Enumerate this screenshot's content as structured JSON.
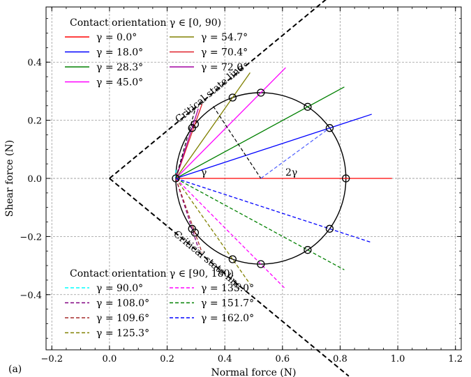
{
  "panel_label": "(a)",
  "chart_data": {
    "type": "line",
    "xlabel": "Normal force (N)",
    "ylabel": "Shear force (N)",
    "xlim": [
      -0.22,
      1.22
    ],
    "ylim": [
      -0.59,
      0.59
    ],
    "xticks": [
      -0.2,
      0.0,
      0.2,
      0.4,
      0.6,
      0.8,
      1.0,
      1.2
    ],
    "yticks": [
      -0.4,
      -0.2,
      0.0,
      0.2,
      0.4
    ],
    "xtick_labels": [
      "−0.2",
      "0.0",
      "0.2",
      "0.4",
      "0.6",
      "0.8",
      "1.0",
      "1.2"
    ],
    "ytick_labels": [
      "−0.4",
      "−0.2",
      "0.0",
      "0.2",
      "0.4"
    ],
    "grid": true,
    "mohr_circle": {
      "center": [
        0.525,
        0.0
      ],
      "radius": 0.295
    },
    "critical_state_line": {
      "slope": 0.82,
      "x_range": [
        0.0,
        0.83
      ],
      "label": "Critical state line"
    },
    "construction": {
      "origin": [
        0.23,
        0.0
      ],
      "angle_label": "γ",
      "double_angle_label": "2γ",
      "tangent_points": [
        [
          0.3,
          0.248
        ],
        [
          0.36,
          0.248
        ]
      ]
    },
    "legend_upper": {
      "title": "Contact orientation γ ∈ [0, 90)",
      "position": "top-left",
      "style": "solid",
      "entries": [
        {
          "label": "γ = 0.0°",
          "angle": 0.0,
          "color": "#ff0000"
        },
        {
          "label": "γ = 18.0°",
          "angle": 18.0,
          "color": "#0000ff"
        },
        {
          "label": "γ = 28.3°",
          "angle": 28.3,
          "color": "#008000"
        },
        {
          "label": "γ = 45.0°",
          "angle": 45.0,
          "color": "#ff00ff"
        },
        {
          "label": "γ = 54.7°",
          "angle": 54.7,
          "color": "#808000"
        },
        {
          "label": "γ = 70.4°",
          "angle": 70.4,
          "color": "#e0202a"
        },
        {
          "label": "γ = 72.0°",
          "angle": 72.0,
          "color": "#a000a0"
        }
      ]
    },
    "legend_lower": {
      "title": "Contact orientation γ ∈ [90, 180)",
      "position": "bottom-left",
      "style": "dashed",
      "entries": [
        {
          "label": "γ = 90.0°",
          "angle": 90.0,
          "color": "#00ffff"
        },
        {
          "label": "γ = 108.0°",
          "angle": 108.0,
          "color": "#800080"
        },
        {
          "label": "γ = 109.6°",
          "angle": 109.6,
          "color": "#a52a2a"
        },
        {
          "label": "γ = 125.3°",
          "angle": 125.3,
          "color": "#808000"
        },
        {
          "label": "γ = 135.0°",
          "angle": 135.0,
          "color": "#ff00ff"
        },
        {
          "label": "γ = 151.7°",
          "angle": 151.7,
          "color": "#008000"
        },
        {
          "label": "γ = 162.0°",
          "angle": 162.0,
          "color": "#0000ff"
        }
      ]
    }
  }
}
